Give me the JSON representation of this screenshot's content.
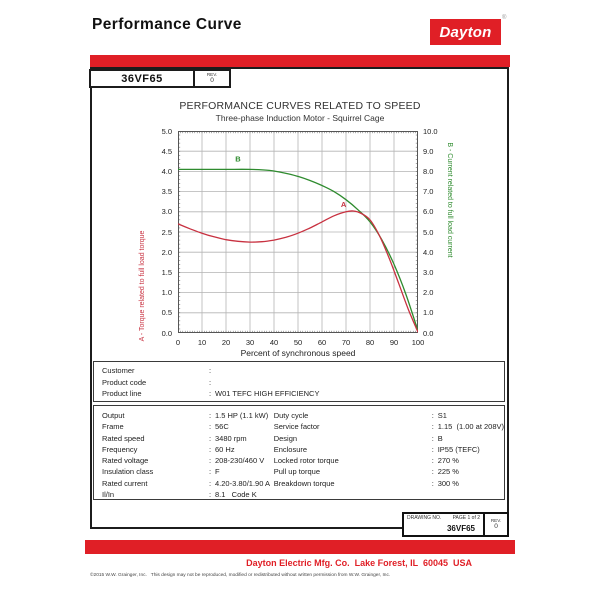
{
  "header": {
    "title": "Performance Curve",
    "logo_text": "Dayton",
    "registered_mark": "®"
  },
  "model_box": {
    "model": "36VF65",
    "rev_label": "REV.",
    "rev_value": "0"
  },
  "chart_data": {
    "type": "line",
    "title": "PERFORMANCE CURVES RELATED TO SPEED",
    "subtitle": "Three-phase Induction Motor - Squirrel Cage",
    "xlabel": "Percent of synchronous speed",
    "grid": true,
    "x_axis": {
      "min": 0,
      "max": 100,
      "tick_step": 10
    },
    "left_axis": {
      "label": "A - Torque related to full load torque",
      "min": 0.0,
      "max": 5.0,
      "tick_step": 0.5,
      "color": "#c83140"
    },
    "right_axis": {
      "label": "B - Current related to full load current",
      "min": 0.0,
      "max": 10.0,
      "tick_step": 1.0,
      "color": "#2e8b2e"
    },
    "series": [
      {
        "name": "B",
        "axis": "right",
        "color": "#2e8b2e",
        "points": [
          [
            0,
            8.1
          ],
          [
            10,
            8.1
          ],
          [
            20,
            8.1
          ],
          [
            30,
            8.1
          ],
          [
            38,
            8.05
          ],
          [
            45,
            7.9
          ],
          [
            50,
            7.75
          ],
          [
            55,
            7.55
          ],
          [
            60,
            7.3
          ],
          [
            65,
            7.0
          ],
          [
            70,
            6.6
          ],
          [
            75,
            6.1
          ],
          [
            80,
            5.5
          ],
          [
            85,
            4.6
          ],
          [
            90,
            3.4
          ],
          [
            95,
            1.9
          ],
          [
            100,
            0.1
          ]
        ]
      },
      {
        "name": "A",
        "axis": "left",
        "color": "#c83140",
        "points": [
          [
            0,
            2.7
          ],
          [
            5,
            2.58
          ],
          [
            10,
            2.47
          ],
          [
            15,
            2.38
          ],
          [
            20,
            2.31
          ],
          [
            25,
            2.27
          ],
          [
            30,
            2.25
          ],
          [
            35,
            2.26
          ],
          [
            40,
            2.3
          ],
          [
            45,
            2.37
          ],
          [
            50,
            2.47
          ],
          [
            55,
            2.6
          ],
          [
            60,
            2.75
          ],
          [
            65,
            2.9
          ],
          [
            70,
            3.0
          ],
          [
            73,
            3.02
          ],
          [
            76,
            2.97
          ],
          [
            80,
            2.8
          ],
          [
            84,
            2.4
          ],
          [
            88,
            1.85
          ],
          [
            92,
            1.22
          ],
          [
            96,
            0.58
          ],
          [
            100,
            0.02
          ]
        ]
      }
    ],
    "curve_labels": [
      {
        "text": "B",
        "x": 25,
        "value": 4.25,
        "axis": "left",
        "color": "#2e8b2e"
      },
      {
        "text": "A",
        "x": 69,
        "value": 3.12,
        "axis": "left",
        "color": "#c83140"
      }
    ]
  },
  "customer_box": {
    "rows": [
      {
        "label": "Customer",
        "value": ""
      },
      {
        "label": "Product code",
        "value": ""
      },
      {
        "label": "Product line",
        "value": "W01 TEFC HIGH EFFICIENCY"
      }
    ]
  },
  "specs_box": {
    "left_rows": [
      {
        "label": "Output",
        "value": "1.5 HP (1.1 kW)"
      },
      {
        "label": "Frame",
        "value": "56C"
      },
      {
        "label": "Rated speed",
        "value": "3480 rpm"
      },
      {
        "label": "Frequency",
        "value": "60 Hz"
      },
      {
        "label": "Rated voltage",
        "value": "208-230/460 V"
      },
      {
        "label": "Insulation class",
        "value": "F"
      },
      {
        "label": "Rated current",
        "value": "4.20-3.80/1.90 A"
      },
      {
        "label": "Il/In",
        "value": "8.1   Code K"
      }
    ],
    "right_rows": [
      {
        "label": "Duty cycle",
        "value": "S1"
      },
      {
        "label": "Service factor",
        "value": "1.15  (1.00 at 208V)"
      },
      {
        "label": "Design",
        "value": "B"
      },
      {
        "label": "Enclosure",
        "value": "IP55 (TEFC)"
      },
      {
        "label": "Locked rotor torque",
        "value": "270 %"
      },
      {
        "label": "Pull up torque",
        "value": "225 %"
      },
      {
        "label": "Breakdown torque",
        "value": "300 %"
      }
    ]
  },
  "title_block": {
    "drawing_no_label": "DRAWING NO.",
    "page_label": "PAGE 1 of 2",
    "drawing_number": "36VF65",
    "rev_label": "REV.",
    "rev_value": "0"
  },
  "footer": {
    "company_line": "Dayton Electric Mfg. Co.  Lake Forest, IL  60045  USA",
    "copyright": "©2015 W.W. Grainger, Inc.   This design may not be reproduced, modified or redistributed without written permission from W.W. Grainger, Inc."
  },
  "colors": {
    "brand_red": "#e01f26",
    "curve_red": "#c83140",
    "curve_green": "#2e8b2e"
  }
}
